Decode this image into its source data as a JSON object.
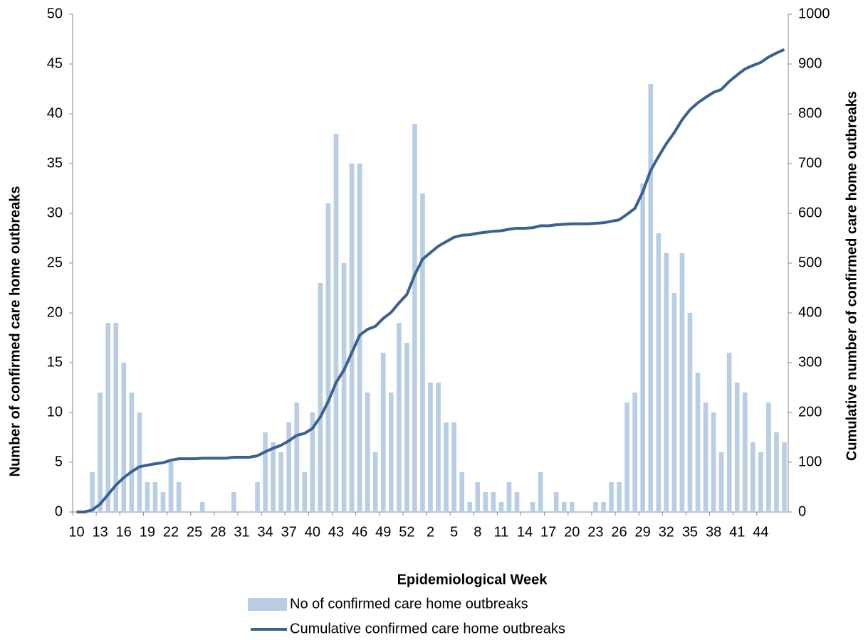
{
  "chart_data": {
    "type": "bar",
    "x_label": "Epidemiological Week",
    "y_label": "Number of confirmed care home outbreaks",
    "y2_label": "Cumulative number of confirmed care home outbreaks",
    "categories": [
      "10",
      null,
      null,
      "13",
      null,
      null,
      "16",
      null,
      null,
      "19",
      null,
      null,
      "22",
      null,
      null,
      "25",
      null,
      null,
      "28",
      null,
      null,
      "31",
      null,
      null,
      "34",
      null,
      null,
      "37",
      null,
      null,
      "40",
      null,
      null,
      "43",
      null,
      null,
      "46",
      null,
      null,
      "49",
      null,
      null,
      "52",
      null,
      null,
      "2",
      null,
      null,
      "5",
      null,
      null,
      "8",
      null,
      null,
      "11",
      null,
      null,
      "14",
      null,
      null,
      "17",
      null,
      null,
      "20",
      null,
      null,
      "23",
      null,
      null,
      "26",
      null,
      null,
      "29",
      null,
      null,
      "32",
      null,
      null,
      "35",
      null,
      null,
      "38",
      null,
      null,
      "41",
      null,
      null,
      "44",
      null,
      null,
      null
    ],
    "series": [
      {
        "name": "No of confirmed care home outbreaks",
        "type": "bar",
        "color": "#b9cde5",
        "values": [
          0,
          0,
          4,
          12,
          19,
          19,
          15,
          12,
          10,
          3,
          3,
          2,
          5,
          3,
          0,
          0,
          1,
          0,
          0,
          0,
          2,
          0,
          0,
          3,
          8,
          7,
          6,
          9,
          11,
          4,
          10,
          23,
          31,
          38,
          25,
          35,
          35,
          12,
          6,
          16,
          12,
          19,
          17,
          39,
          32,
          13,
          13,
          9,
          9,
          4,
          1,
          3,
          2,
          2,
          1,
          3,
          2,
          0,
          1,
          4,
          0,
          2,
          1,
          1,
          0,
          0,
          1,
          1,
          3,
          3,
          11,
          12,
          33,
          43,
          28,
          26,
          22,
          26,
          20,
          14,
          11,
          10,
          6,
          16,
          13,
          12,
          7,
          6,
          11,
          8,
          7
        ]
      },
      {
        "name": "Cumulative confirmed care home outbreaks",
        "type": "line",
        "axis": "y2",
        "color": "#3b6190",
        "values": [
          0,
          0,
          4,
          16,
          35,
          54,
          69,
          81,
          91,
          94,
          97,
          99,
          104,
          107,
          107,
          107,
          108,
          108,
          108,
          108,
          110,
          110,
          110,
          113,
          121,
          128,
          134,
          143,
          154,
          158,
          168,
          191,
          222,
          260,
          285,
          320,
          355,
          367,
          373,
          389,
          401,
          420,
          437,
          476,
          508,
          521,
          534,
          543,
          552,
          556,
          557,
          560,
          562,
          564,
          565,
          568,
          570,
          570,
          571,
          575,
          575,
          577,
          578,
          579,
          579,
          579,
          580,
          581,
          584,
          587,
          598,
          610,
          643,
          686,
          714,
          740,
          762,
          788,
          808,
          822,
          833,
          843,
          849,
          865,
          878,
          890,
          897,
          903,
          914,
          922,
          929
        ]
      }
    ],
    "ylim": [
      0,
      50
    ],
    "yticks": [
      0,
      5,
      10,
      15,
      20,
      25,
      30,
      35,
      40,
      45,
      50
    ],
    "y2lim": [
      0,
      1000
    ],
    "y2ticks": [
      0,
      100,
      200,
      300,
      400,
      500,
      600,
      700,
      800,
      900,
      1000
    ],
    "grid": false
  }
}
